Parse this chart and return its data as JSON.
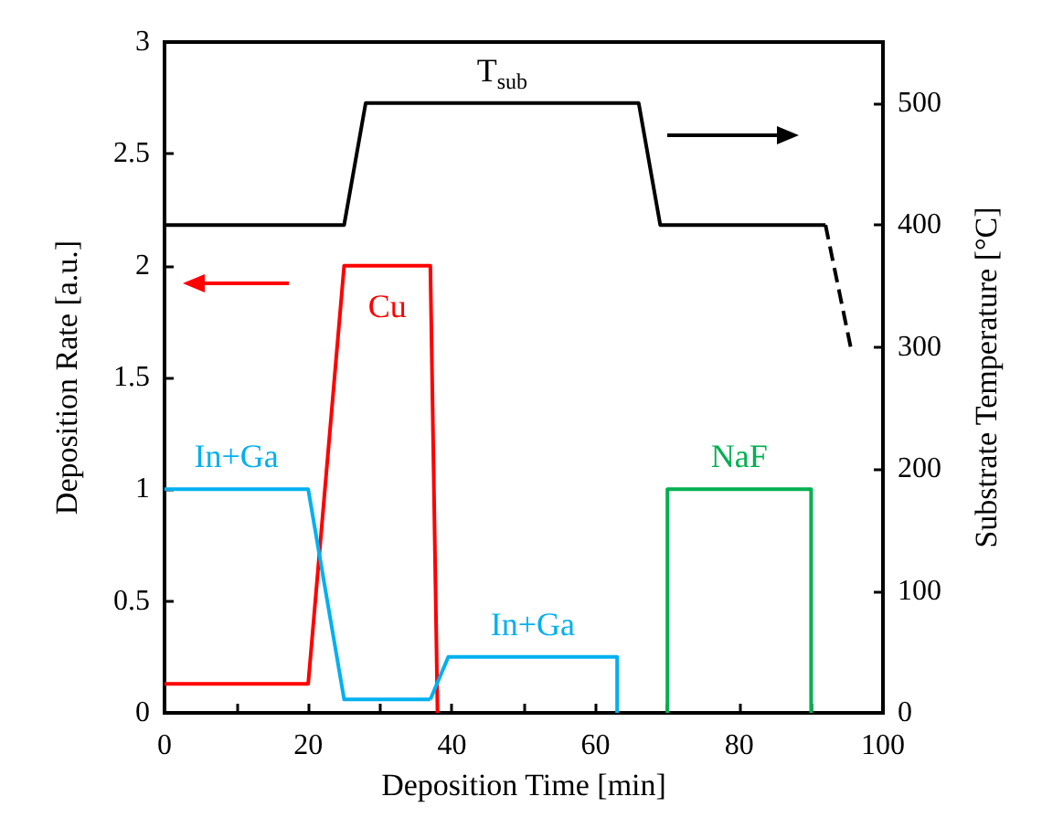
{
  "chart_data": {
    "type": "line",
    "xlabel": "Deposition Time [min]",
    "ylabel": "Deposition Rate [a.u.]",
    "y2label": "Substrate Temperature [°C]",
    "xlim": [
      0,
      100
    ],
    "xticks": [
      0,
      {
        "value": 10,
        "label": null
      },
      20,
      {
        "value": 30,
        "label": null
      },
      40,
      {
        "value": 50,
        "label": null
      },
      60,
      {
        "value": 70,
        "label": null
      },
      80,
      {
        "value": 90,
        "label": null
      },
      100
    ],
    "ylim": [
      0,
      3
    ],
    "yticks": [
      0,
      0.5,
      1,
      1.5,
      2,
      2.5,
      3
    ],
    "y2lim": [
      0,
      550
    ],
    "y2ticks": [
      0,
      100,
      200,
      300,
      400,
      500
    ],
    "series": [
      {
        "name": "Cu",
        "color": "#ff0000",
        "x": [
          0,
          20,
          25,
          37,
          38
        ],
        "values": [
          0.13,
          0.13,
          2,
          2,
          0
        ]
      },
      {
        "name": "In+Ga",
        "color": "#00b0f0",
        "x": [
          0,
          20,
          25,
          37
        ],
        "values": [
          1,
          1,
          0.06,
          0.06
        ]
      },
      {
        "name": "In+Ga",
        "color": "#00b0f0",
        "x": [
          37,
          39.5,
          63,
          63
        ],
        "values": [
          0.06,
          0.25,
          0.25,
          0
        ]
      },
      {
        "name": "NaF",
        "color": "#00b050",
        "x": [
          70,
          70,
          90,
          90
        ],
        "values": [
          0,
          1,
          1,
          0
        ]
      },
      {
        "name": "T$_{sub}$",
        "color": "#000000",
        "axis": "y2",
        "x": [
          0,
          25,
          28,
          66,
          69,
          92
        ],
        "values": [
          400,
          400,
          500,
          500,
          400,
          400
        ]
      },
      {
        "color": "#000000",
        "axis": "y2",
        "line_style": "dashed",
        "x": [
          92,
          95.5
        ],
        "values": [
          400,
          300
        ]
      }
    ]
  }
}
